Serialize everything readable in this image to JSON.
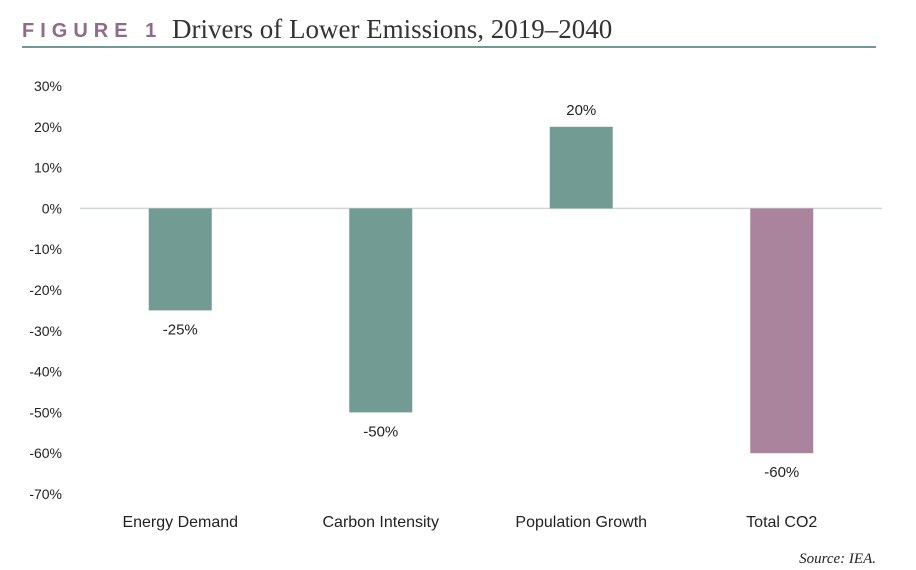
{
  "figure_label": "FIGURE 1",
  "source": "Source: IEA.",
  "colors": {
    "label_accent": "#8f6a8a",
    "rule": "#6f9a95",
    "bar_default": "#729b94",
    "bar_highlight": "#aa849c",
    "zero_line": "#cfd6d4"
  },
  "chart_data": {
    "type": "bar",
    "title": "Drivers of Lower Emissions, 2019–2040",
    "xlabel": "",
    "ylabel": "",
    "categories": [
      "Energy Demand",
      "Carbon Intensity",
      "Population Growth",
      "Total CO2"
    ],
    "values": [
      -25,
      -50,
      20,
      -60
    ],
    "data_labels": [
      "-25%",
      "-50%",
      "20%",
      "-60%"
    ],
    "highlight_index": 3,
    "ylim": [
      -70,
      30
    ],
    "yticks": [
      30,
      20,
      10,
      0,
      -10,
      -20,
      -30,
      -40,
      -50,
      -60,
      -70
    ],
    "ytick_labels": [
      "30%",
      "20%",
      "10%",
      "0%",
      "-10%",
      "-20%",
      "-30%",
      "-40%",
      "-50%",
      "-60%",
      "-70%"
    ],
    "grid": false,
    "legend": "none"
  }
}
